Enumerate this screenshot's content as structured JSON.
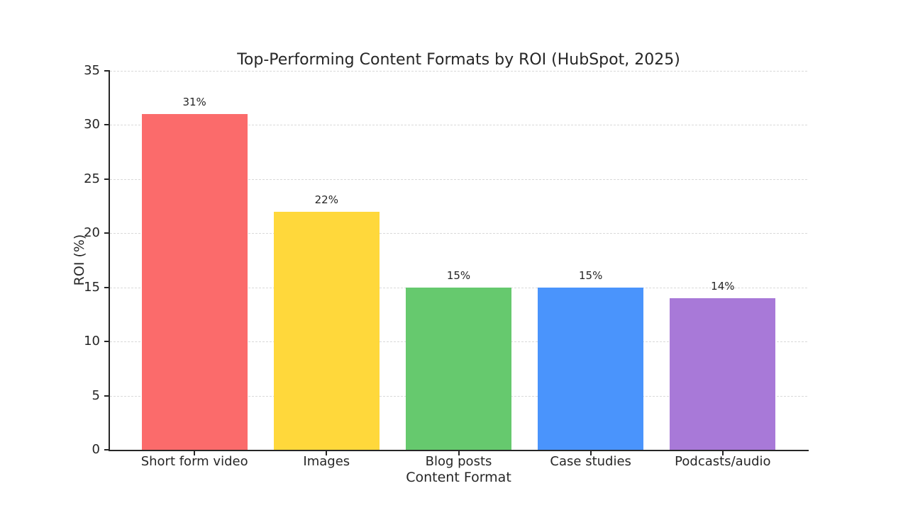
{
  "figure": {
    "background": "#ffffff",
    "text_color": "#262626",
    "axis_color": "#262626",
    "grid_color": "#d9d9d9"
  },
  "chart_data": {
    "type": "bar",
    "title": "Top-Performing Content Formats by ROI (HubSpot, 2025)",
    "xlabel": "Content Format",
    "ylabel": "ROI (%)",
    "categories": [
      "Short form video",
      "Images",
      "Blog posts",
      "Case studies",
      "Podcasts/audio"
    ],
    "values": [
      31,
      22,
      15,
      15,
      14
    ],
    "bar_labels": [
      "31%",
      "22%",
      "15%",
      "15%",
      "14%"
    ],
    "bar_colors": [
      "#FB6B6B",
      "#FFD83B",
      "#66C96E",
      "#4A94FC",
      "#A879D8"
    ],
    "ylim": [
      0,
      35
    ],
    "yticks": [
      0,
      5,
      10,
      15,
      20,
      25,
      30,
      35
    ],
    "grid": "horizontal-dashed",
    "legend": "none"
  }
}
